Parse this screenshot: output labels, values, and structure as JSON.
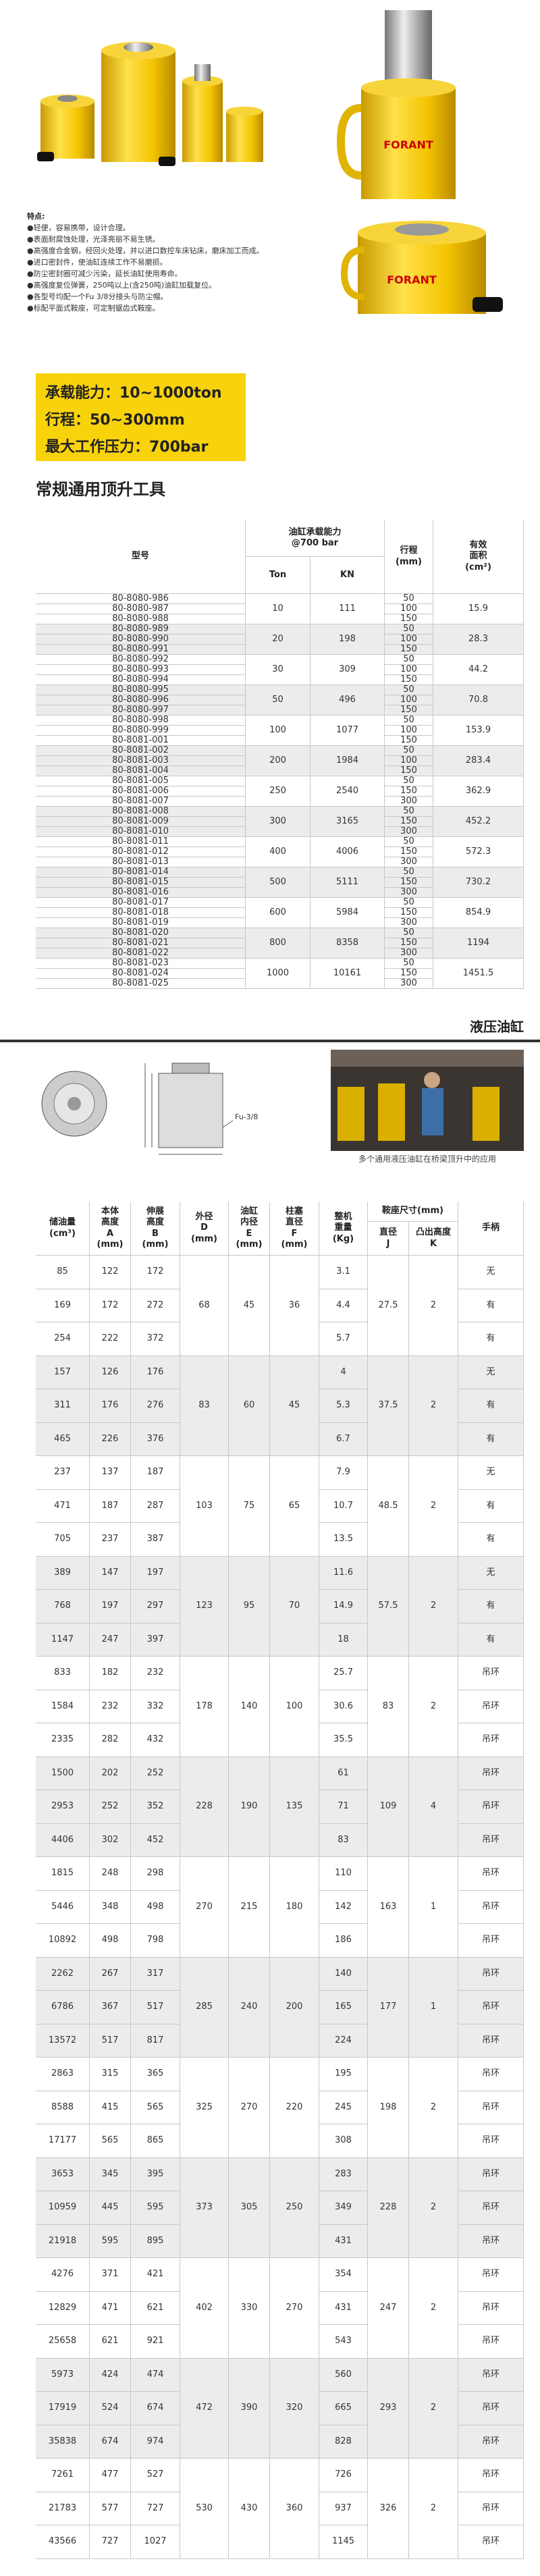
{
  "brand": "FORANT",
  "features": {
    "title": "特点:",
    "items": [
      "●轻便，容易携带，设计合理。",
      "●表面耐腐蚀处理，光泽亮丽不易生锈。",
      "●高强度合金钢，经回火处理，并以进口数控车床钻床，磨床加工而成。",
      "●进口密封件，使油缸连续工作不易磨损。",
      "●防尘密封圈可减少污染，延长油缸使用寿命。",
      "●高强度复位弹簧，250吨以上(含250吨)油缸加载复位。",
      "●各型号均配一个Fu 3/8分接头与防尘帽。",
      "●标配平面式鞍座，可定制锯齿式鞍座。"
    ]
  },
  "specs": [
    "承载能力：10~1000ton",
    "行程：50~300mm",
    "最大工作压力：700bar"
  ],
  "section_title": "常规通用顶升工具",
  "table1": {
    "headers": {
      "model": [
        "型号"
      ],
      "capacity": [
        "油缸承载能力",
        "@700 bar"
      ],
      "ton": [
        "Ton"
      ],
      "kn": [
        "KN"
      ],
      "stroke": [
        "行程",
        "(mm)"
      ],
      "area": [
        "有效",
        "面积",
        "(cm²)"
      ]
    },
    "groups": [
      {
        "ton": 10,
        "kn": 111,
        "area": 15.9,
        "rows": [
          [
            "80-8080-986",
            50
          ],
          [
            "80-8080-987",
            100
          ],
          [
            "80-8080-988",
            150
          ]
        ]
      },
      {
        "ton": 20,
        "kn": 198,
        "area": 28.3,
        "rows": [
          [
            "80-8080-989",
            50
          ],
          [
            "80-8080-990",
            100
          ],
          [
            "80-8080-991",
            150
          ]
        ]
      },
      {
        "ton": 30,
        "kn": 309,
        "area": 44.2,
        "rows": [
          [
            "80-8080-992",
            50
          ],
          [
            "80-8080-993",
            100
          ],
          [
            "80-8080-994",
            150
          ]
        ]
      },
      {
        "ton": 50,
        "kn": 496,
        "area": 70.8,
        "rows": [
          [
            "80-8080-995",
            50
          ],
          [
            "80-8080-996",
            100
          ],
          [
            "80-8080-997",
            150
          ]
        ]
      },
      {
        "ton": 100,
        "kn": 1077,
        "area": 153.9,
        "rows": [
          [
            "80-8080-998",
            50
          ],
          [
            "80-8080-999",
            100
          ],
          [
            "80-8081-001",
            150
          ]
        ]
      },
      {
        "ton": 200,
        "kn": 1984,
        "area": 283.4,
        "rows": [
          [
            "80-8081-002",
            50
          ],
          [
            "80-8081-003",
            100
          ],
          [
            "80-8081-004",
            150
          ]
        ]
      },
      {
        "ton": 250,
        "kn": 2540,
        "area": 362.9,
        "rows": [
          [
            "80-8081-005",
            50
          ],
          [
            "80-8081-006",
            150
          ],
          [
            "80-8081-007",
            300
          ]
        ]
      },
      {
        "ton": 300,
        "kn": 3165,
        "area": 452.2,
        "rows": [
          [
            "80-8081-008",
            50
          ],
          [
            "80-8081-009",
            150
          ],
          [
            "80-8081-010",
            300
          ]
        ]
      },
      {
        "ton": 400,
        "kn": 4006,
        "area": 572.3,
        "rows": [
          [
            "80-8081-011",
            50
          ],
          [
            "80-8081-012",
            150
          ],
          [
            "80-8081-013",
            300
          ]
        ]
      },
      {
        "ton": 500,
        "kn": 5111,
        "area": 730.2,
        "rows": [
          [
            "80-8081-014",
            50
          ],
          [
            "80-8081-015",
            150
          ],
          [
            "80-8081-016",
            300
          ]
        ]
      },
      {
        "ton": 600,
        "kn": 5984,
        "area": 854.9,
        "rows": [
          [
            "80-8081-017",
            50
          ],
          [
            "80-8081-018",
            150
          ],
          [
            "80-8081-019",
            300
          ]
        ]
      },
      {
        "ton": 800,
        "kn": 8358,
        "area": 1194,
        "rows": [
          [
            "80-8081-020",
            50
          ],
          [
            "80-8081-021",
            150
          ],
          [
            "80-8081-022",
            300
          ]
        ]
      },
      {
        "ton": 1000,
        "kn": 10161,
        "area": 1451.5,
        "rows": [
          [
            "80-8081-023",
            50
          ],
          [
            "80-8081-024",
            150
          ],
          [
            "80-8081-025",
            300
          ]
        ]
      }
    ]
  },
  "section2": {
    "title": "液压油缸",
    "diagram_label": "Fu-3/8",
    "caption": "多个通用液压油缸在桥梁顶升中的应用"
  },
  "table2": {
    "headers": {
      "oil": [
        "储油量",
        "(cm³)"
      ],
      "A": [
        "本体",
        "高度",
        "A",
        "(mm)"
      ],
      "B": [
        "伸展",
        "高度",
        "B",
        "(mm)"
      ],
      "D": [
        "外径",
        "D",
        "(mm)"
      ],
      "E": [
        "油缸",
        "内径",
        "E",
        "(mm)"
      ],
      "F": [
        "柱塞",
        "直径",
        "F",
        "(mm)"
      ],
      "weight": [
        "整机",
        "重量",
        "(Kg)"
      ],
      "saddle": [
        "鞍座尺寸(mm)"
      ],
      "J": [
        "直径",
        "J"
      ],
      "K": [
        "凸出高度",
        "K"
      ],
      "handle": [
        "手柄"
      ]
    },
    "groups": [
      {
        "D": 68,
        "E": 45,
        "F": 36,
        "J": 27.5,
        "K": 2,
        "rows": [
          [
            85,
            122,
            172,
            3.1,
            "无"
          ],
          [
            169,
            172,
            272,
            4.4,
            "有"
          ],
          [
            254,
            222,
            372,
            5.7,
            "有"
          ]
        ]
      },
      {
        "D": 83,
        "E": 60,
        "F": 45,
        "J": 37.5,
        "K": 2,
        "rows": [
          [
            157,
            126,
            176,
            4,
            "无"
          ],
          [
            311,
            176,
            276,
            5.3,
            "有"
          ],
          [
            465,
            226,
            376,
            6.7,
            "有"
          ]
        ]
      },
      {
        "D": 103,
        "E": 75,
        "F": 65,
        "J": 48.5,
        "K": 2,
        "rows": [
          [
            237,
            137,
            187,
            7.9,
            "无"
          ],
          [
            471,
            187,
            287,
            10.7,
            "有"
          ],
          [
            705,
            237,
            387,
            13.5,
            "有"
          ]
        ]
      },
      {
        "D": 123,
        "E": 95,
        "F": 70,
        "J": 57.5,
        "K": 2,
        "rows": [
          [
            389,
            147,
            197,
            11.6,
            "无"
          ],
          [
            768,
            197,
            297,
            14.9,
            "有"
          ],
          [
            1147,
            247,
            397,
            18,
            "有"
          ]
        ]
      },
      {
        "D": 178,
        "E": 140,
        "F": 100,
        "J": 83,
        "K": 2,
        "rows": [
          [
            833,
            182,
            232,
            25.7,
            "吊环"
          ],
          [
            1584,
            232,
            332,
            30.6,
            "吊环"
          ],
          [
            2335,
            282,
            432,
            35.5,
            "吊环"
          ]
        ]
      },
      {
        "D": 228,
        "E": 190,
        "F": 135,
        "J": 109,
        "K": 4,
        "rows": [
          [
            1500,
            202,
            252,
            61,
            "吊环"
          ],
          [
            2953,
            252,
            352,
            71,
            "吊环"
          ],
          [
            4406,
            302,
            452,
            83,
            "吊环"
          ]
        ]
      },
      {
        "D": 270,
        "E": 215,
        "F": 180,
        "J": 163,
        "K": 1,
        "rows": [
          [
            1815,
            248,
            298,
            110,
            "吊环"
          ],
          [
            5446,
            348,
            498,
            142,
            "吊环"
          ],
          [
            10892,
            498,
            798,
            186,
            "吊环"
          ]
        ]
      },
      {
        "D": 285,
        "E": 240,
        "F": 200,
        "J": 177,
        "K": 1,
        "rows": [
          [
            2262,
            267,
            317,
            140,
            "吊环"
          ],
          [
            6786,
            367,
            517,
            165,
            "吊环"
          ],
          [
            13572,
            517,
            817,
            224,
            "吊环"
          ]
        ]
      },
      {
        "D": 325,
        "E": 270,
        "F": 220,
        "J": 198,
        "K": 2,
        "rows": [
          [
            2863,
            315,
            365,
            195,
            "吊环"
          ],
          [
            8588,
            415,
            565,
            245,
            "吊环"
          ],
          [
            17177,
            565,
            865,
            308,
            "吊环"
          ]
        ]
      },
      {
        "D": 373,
        "E": 305,
        "F": 250,
        "J": 228,
        "K": 2,
        "rows": [
          [
            3653,
            345,
            395,
            283,
            "吊环"
          ],
          [
            10959,
            445,
            595,
            349,
            "吊环"
          ],
          [
            21918,
            595,
            895,
            431,
            "吊环"
          ]
        ]
      },
      {
        "D": 402,
        "E": 330,
        "F": 270,
        "J": 247,
        "K": 2,
        "rows": [
          [
            4276,
            371,
            421,
            354,
            "吊环"
          ],
          [
            12829,
            471,
            621,
            431,
            "吊环"
          ],
          [
            25658,
            621,
            921,
            543,
            "吊环"
          ]
        ]
      },
      {
        "D": 472,
        "E": 390,
        "F": 320,
        "J": 293,
        "K": 2,
        "rows": [
          [
            5973,
            424,
            474,
            560,
            "吊环"
          ],
          [
            17919,
            524,
            674,
            665,
            "吊环"
          ],
          [
            35838,
            674,
            974,
            828,
            "吊环"
          ]
        ]
      },
      {
        "D": 530,
        "E": 430,
        "F": 360,
        "J": 326,
        "K": 2,
        "rows": [
          [
            7261,
            477,
            527,
            726,
            "吊环"
          ],
          [
            21783,
            577,
            727,
            937,
            "吊环"
          ],
          [
            43566,
            727,
            1027,
            1145,
            "吊环"
          ]
        ]
      }
    ]
  }
}
